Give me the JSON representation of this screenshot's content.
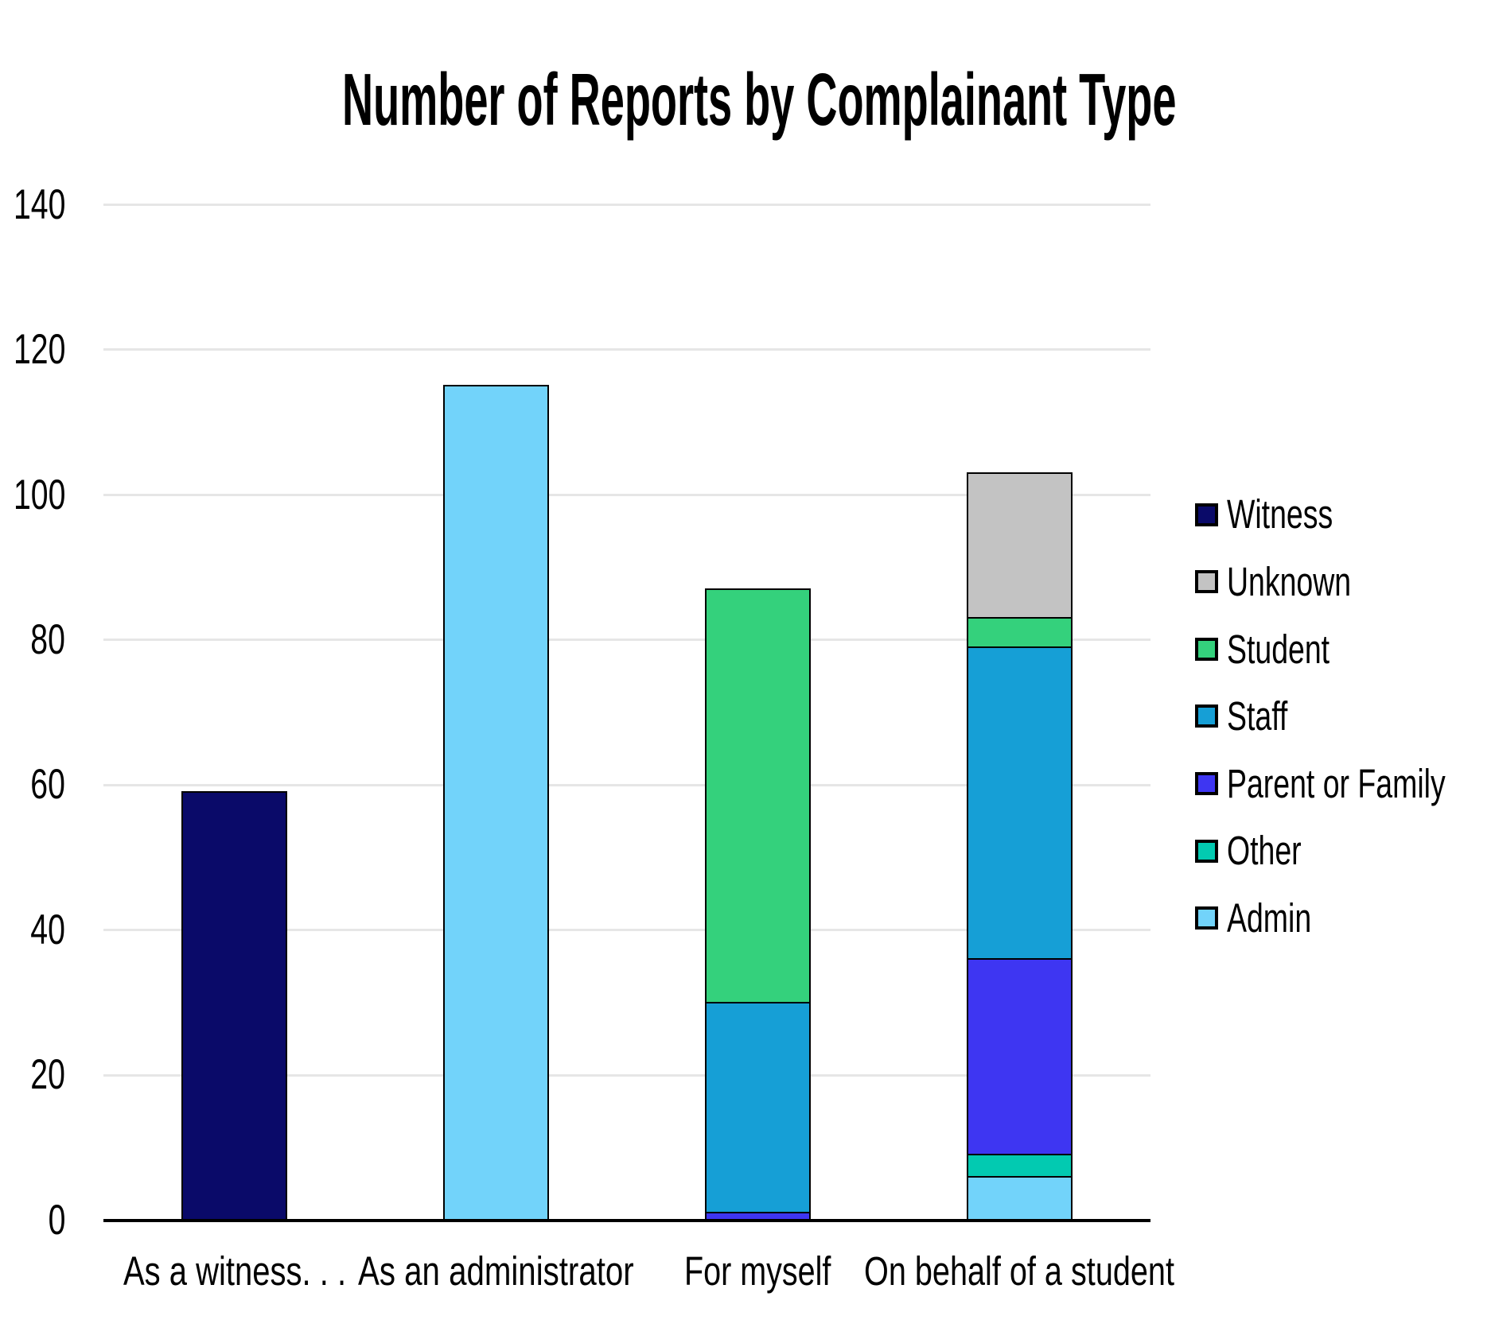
{
  "title": "Number of Reports by Complainant Type",
  "colors": {
    "background": "#ffffff",
    "text": "#000000",
    "axis": "#000000",
    "gridline": "#e6e6e6",
    "bar_border": "#000000",
    "series": {
      "Witness": "#0a0a69",
      "Unknown": "#c3c3c3",
      "Student": "#34d17c",
      "Staff": "#169fd6",
      "Parent or Family": "#3e36f2",
      "Other": "#02cab1",
      "Admin": "#72d3fa"
    }
  },
  "chart_data": {
    "type": "bar",
    "stacked": true,
    "title": "Number of Reports by Complainant Type",
    "xlabel": "",
    "ylabel": "",
    "categories": [
      "As a witness…",
      "As an administrator",
      "For myself",
      "On behalf of a student"
    ],
    "series": [
      {
        "name": "Witness",
        "color": "#0a0a69",
        "values": [
          59,
          0,
          0,
          0
        ]
      },
      {
        "name": "Unknown",
        "color": "#c3c3c3",
        "values": [
          0,
          0,
          0,
          20
        ]
      },
      {
        "name": "Student",
        "color": "#34d17c",
        "values": [
          0,
          0,
          57,
          4
        ]
      },
      {
        "name": "Staff",
        "color": "#169fd6",
        "values": [
          0,
          0,
          29,
          43
        ]
      },
      {
        "name": "Parent or Family",
        "color": "#3e36f2",
        "values": [
          0,
          0,
          1,
          27
        ]
      },
      {
        "name": "Other",
        "color": "#02cab1",
        "values": [
          0,
          0,
          0,
          3
        ]
      },
      {
        "name": "Admin",
        "color": "#72d3fa",
        "values": [
          0,
          115,
          0,
          6
        ]
      }
    ],
    "stack_order_bottom_to_top": [
      "Admin",
      "Other",
      "Parent or Family",
      "Staff",
      "Student",
      "Unknown",
      "Witness"
    ],
    "category_totals": [
      59,
      115,
      87,
      103
    ],
    "ylim": [
      0,
      140
    ],
    "yticks": [
      0,
      20,
      40,
      60,
      80,
      100,
      120,
      140
    ],
    "grid": true,
    "legend_position": "right",
    "legend": [
      "Witness",
      "Unknown",
      "Student",
      "Staff",
      "Parent or Family",
      "Other",
      "Admin"
    ]
  }
}
